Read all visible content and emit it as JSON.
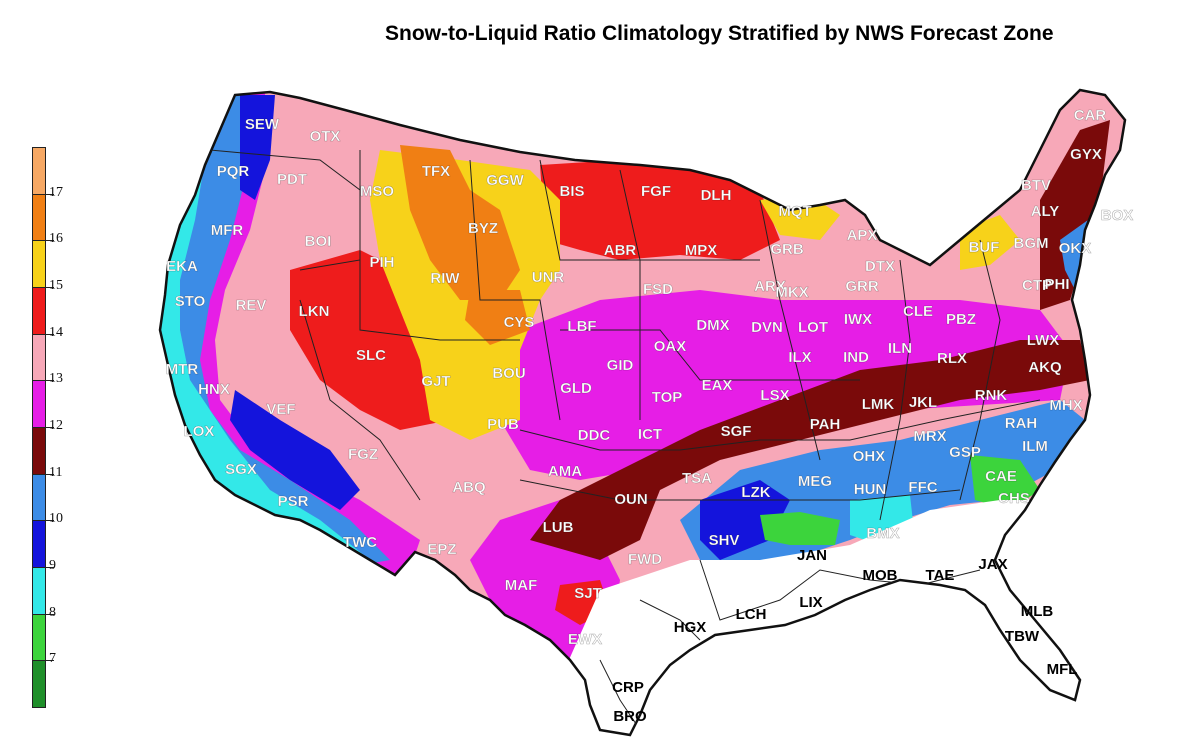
{
  "title": "Snow-to-Liquid Ratio Climatology Stratified by NWS Forecast Zone",
  "legend": {
    "bins": [
      {
        "value": 6,
        "color": "#1f8f2a"
      },
      {
        "value": 7,
        "color": "#3cd43c"
      },
      {
        "value": 8,
        "color": "#33e8e8"
      },
      {
        "value": 9,
        "color": "#1414dc"
      },
      {
        "value": 10,
        "color": "#3c8ce6"
      },
      {
        "value": 11,
        "color": "#7a0a0a"
      },
      {
        "value": 12,
        "color": "#e61ee6"
      },
      {
        "value": 13,
        "color": "#f7a8b8"
      },
      {
        "value": 14,
        "color": "#ee1c1c"
      },
      {
        "value": 15,
        "color": "#f7d21a"
      },
      {
        "value": 16,
        "color": "#f07f14"
      },
      {
        "value": 17,
        "color": "#f6a864"
      }
    ],
    "tick_labels": [
      "7",
      "8",
      "9",
      "10",
      "11",
      "12",
      "13",
      "14",
      "15",
      "16",
      "17"
    ]
  },
  "offices": [
    {
      "code": "SEW",
      "slr": 11
    },
    {
      "code": "OTX",
      "slr": 13
    },
    {
      "code": "PQR",
      "slr": 10
    },
    {
      "code": "PDT",
      "slr": 13
    },
    {
      "code": "MFR",
      "slr": 13
    },
    {
      "code": "BOI",
      "slr": 13
    },
    {
      "code": "EKA",
      "slr": 8
    },
    {
      "code": "STO",
      "slr": 10
    },
    {
      "code": "REV",
      "slr": 13
    },
    {
      "code": "LKN",
      "slr": 14
    },
    {
      "code": "MTR",
      "slr": 9
    },
    {
      "code": "HNX",
      "slr": 9
    },
    {
      "code": "VEF",
      "slr": 10
    },
    {
      "code": "LOX",
      "slr": 8
    },
    {
      "code": "SGX",
      "slr": 8
    },
    {
      "code": "PSR",
      "slr": 10
    },
    {
      "code": "TWC",
      "slr": 8
    },
    {
      "code": "FGZ",
      "slr": 13
    },
    {
      "code": "MSO",
      "slr": 14
    },
    {
      "code": "TFX",
      "slr": 16
    },
    {
      "code": "GGW",
      "slr": 15
    },
    {
      "code": "BYZ",
      "slr": 16
    },
    {
      "code": "PIH",
      "slr": 14
    },
    {
      "code": "RIW",
      "slr": 15
    },
    {
      "code": "SLC",
      "slr": 14
    },
    {
      "code": "GJT",
      "slr": 15
    },
    {
      "code": "CYS",
      "slr": 16
    },
    {
      "code": "UNR",
      "slr": 15
    },
    {
      "code": "BOU",
      "slr": 15
    },
    {
      "code": "PUB",
      "slr": 15
    },
    {
      "code": "ABQ",
      "slr": 13
    },
    {
      "code": "EPZ",
      "slr": 12
    },
    {
      "code": "BIS",
      "slr": 14
    },
    {
      "code": "FGF",
      "slr": 14
    },
    {
      "code": "DLH",
      "slr": 14
    },
    {
      "code": "ABR",
      "slr": 14
    },
    {
      "code": "MPX",
      "slr": 13
    },
    {
      "code": "FSD",
      "slr": 13
    },
    {
      "code": "LBF",
      "slr": 13
    },
    {
      "code": "GID",
      "slr": 12
    },
    {
      "code": "OAX",
      "slr": 12
    },
    {
      "code": "GLD",
      "slr": 13
    },
    {
      "code": "TOP",
      "slr": 13
    },
    {
      "code": "DDC",
      "slr": 12
    },
    {
      "code": "ICT",
      "slr": 12
    },
    {
      "code": "EAX",
      "slr": 12
    },
    {
      "code": "DMX",
      "slr": 12
    },
    {
      "code": "AMA",
      "slr": 12
    },
    {
      "code": "LUB",
      "slr": 11
    },
    {
      "code": "OUN",
      "slr": 11
    },
    {
      "code": "TSA",
      "slr": 11
    },
    {
      "code": "MAF",
      "slr": 12
    },
    {
      "code": "SJT",
      "slr": 14
    },
    {
      "code": "FWD",
      "slr": 11
    },
    {
      "code": "EWX",
      "slr": 12
    },
    {
      "code": "SGF",
      "slr": 11
    },
    {
      "code": "LZK",
      "slr": 9
    },
    {
      "code": "SHV",
      "slr": 10
    },
    {
      "code": "MEG",
      "slr": 10
    },
    {
      "code": "JAN",
      "slr": null
    },
    {
      "code": "HGX",
      "slr": null
    },
    {
      "code": "LCH",
      "slr": null
    },
    {
      "code": "LIX",
      "slr": null
    },
    {
      "code": "CRP",
      "slr": null
    },
    {
      "code": "BRO",
      "slr": null
    },
    {
      "code": "MOB",
      "slr": null
    },
    {
      "code": "TAE",
      "slr": null
    },
    {
      "code": "JAX",
      "slr": null
    },
    {
      "code": "MLB",
      "slr": null
    },
    {
      "code": "TBW",
      "slr": null
    },
    {
      "code": "MFL",
      "slr": null
    },
    {
      "code": "HUN",
      "slr": 10
    },
    {
      "code": "BMX",
      "slr": 8
    },
    {
      "code": "FFC",
      "slr": 10
    },
    {
      "code": "OHX",
      "slr": 10
    },
    {
      "code": "PAH",
      "slr": 11
    },
    {
      "code": "LSX",
      "slr": 12
    },
    {
      "code": "ILX",
      "slr": 12
    },
    {
      "code": "DVN",
      "slr": 12
    },
    {
      "code": "ARX",
      "slr": 13
    },
    {
      "code": "MKX",
      "slr": 13
    },
    {
      "code": "GRB",
      "slr": 14
    },
    {
      "code": "MQT",
      "slr": 15
    },
    {
      "code": "APX",
      "slr": 15
    },
    {
      "code": "DTX",
      "slr": 13
    },
    {
      "code": "GRR",
      "slr": 13
    },
    {
      "code": "LOT",
      "slr": 12
    },
    {
      "code": "IWX",
      "slr": 12
    },
    {
      "code": "IND",
      "slr": 12
    },
    {
      "code": "ILN",
      "slr": 12
    },
    {
      "code": "CLE",
      "slr": 13
    },
    {
      "code": "PBZ",
      "slr": 12
    },
    {
      "code": "RLX",
      "slr": 12
    },
    {
      "code": "LMK",
      "slr": 11
    },
    {
      "code": "JKL",
      "slr": 11
    },
    {
      "code": "MRX",
      "slr": 10
    },
    {
      "code": "RNK",
      "slr": 11
    },
    {
      "code": "LWX",
      "slr": 12
    },
    {
      "code": "AKQ",
      "slr": 11
    },
    {
      "code": "RAH",
      "slr": 10
    },
    {
      "code": "MHX",
      "slr": 10
    },
    {
      "code": "ILM",
      "slr": 8
    },
    {
      "code": "GSP",
      "slr": 10
    },
    {
      "code": "CAE",
      "slr": 7
    },
    {
      "code": "CHS",
      "slr": 7
    },
    {
      "code": "BUF",
      "slr": 15
    },
    {
      "code": "BGM",
      "slr": 13
    },
    {
      "code": "CTP",
      "slr": 13
    },
    {
      "code": "ALY",
      "slr": 13
    },
    {
      "code": "BTV",
      "slr": 13
    },
    {
      "code": "GYX",
      "slr": 12
    },
    {
      "code": "CAR",
      "slr": 13
    },
    {
      "code": "BOX",
      "slr": 10
    },
    {
      "code": "OKX",
      "slr": 10
    },
    {
      "code": "PHI",
      "slr": 10
    }
  ]
}
